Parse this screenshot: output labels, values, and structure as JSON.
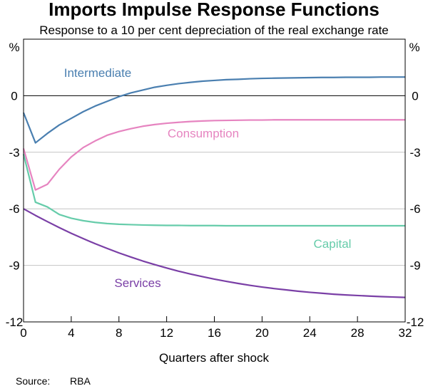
{
  "chart_data": {
    "type": "line",
    "title": "Imports Impulse Response Functions",
    "subtitle": "Response to a 10 per cent depreciation of the real exchange rate",
    "xlabel": "Quarters after shock",
    "ylabel_left": "%",
    "ylabel_right": "%",
    "xlim": [
      0,
      32
    ],
    "ylim": [
      -12,
      3
    ],
    "x_ticks": [
      0,
      4,
      8,
      12,
      16,
      20,
      24,
      28,
      32
    ],
    "y_ticks": [
      0,
      -3,
      -6,
      -9,
      -12
    ],
    "y_tick_labels": [
      "0",
      "-3",
      "-6",
      "-9",
      "-12"
    ],
    "x": [
      0,
      1,
      2,
      3,
      4,
      5,
      6,
      7,
      8,
      9,
      10,
      11,
      12,
      13,
      14,
      15,
      16,
      17,
      18,
      19,
      20,
      21,
      22,
      23,
      24,
      25,
      26,
      27,
      28,
      29,
      30,
      31,
      32
    ],
    "series": [
      {
        "name": "Intermediate",
        "color": "#4a7fb0",
        "values": [
          -0.9,
          -2.5,
          -2.0,
          -1.55,
          -1.2,
          -0.85,
          -0.55,
          -0.3,
          -0.05,
          0.15,
          0.3,
          0.45,
          0.55,
          0.64,
          0.71,
          0.77,
          0.81,
          0.85,
          0.87,
          0.9,
          0.92,
          0.93,
          0.94,
          0.95,
          0.96,
          0.97,
          0.97,
          0.98,
          0.98,
          0.98,
          0.99,
          0.99,
          0.99
        ]
      },
      {
        "name": "Consumption",
        "color": "#e684c0",
        "values": [
          -2.8,
          -5.0,
          -4.7,
          -3.9,
          -3.25,
          -2.75,
          -2.4,
          -2.1,
          -1.9,
          -1.75,
          -1.62,
          -1.53,
          -1.46,
          -1.41,
          -1.37,
          -1.34,
          -1.32,
          -1.31,
          -1.3,
          -1.29,
          -1.29,
          -1.28,
          -1.28,
          -1.28,
          -1.28,
          -1.28,
          -1.28,
          -1.28,
          -1.28,
          -1.28,
          -1.28,
          -1.28,
          -1.28
        ]
      },
      {
        "name": "Capital",
        "color": "#66ccaa",
        "values": [
          -3.1,
          -5.65,
          -5.9,
          -6.3,
          -6.5,
          -6.63,
          -6.72,
          -6.78,
          -6.82,
          -6.84,
          -6.86,
          -6.87,
          -6.88,
          -6.88,
          -6.89,
          -6.89,
          -6.89,
          -6.9,
          -6.9,
          -6.9,
          -6.9,
          -6.9,
          -6.9,
          -6.9,
          -6.9,
          -6.9,
          -6.9,
          -6.9,
          -6.9,
          -6.9,
          -6.9,
          -6.9,
          -6.9
        ]
      },
      {
        "name": "Services",
        "color": "#7a3fa6",
        "values": [
          -6.0,
          -6.35,
          -6.68,
          -7.0,
          -7.3,
          -7.58,
          -7.85,
          -8.1,
          -8.34,
          -8.56,
          -8.77,
          -8.96,
          -9.14,
          -9.31,
          -9.46,
          -9.6,
          -9.73,
          -9.85,
          -9.96,
          -10.06,
          -10.15,
          -10.23,
          -10.3,
          -10.37,
          -10.43,
          -10.48,
          -10.53,
          -10.57,
          -10.6,
          -10.63,
          -10.66,
          -10.68,
          -10.7
        ]
      }
    ],
    "grid": true,
    "source_label": "Source:",
    "source_value": "RBA"
  }
}
